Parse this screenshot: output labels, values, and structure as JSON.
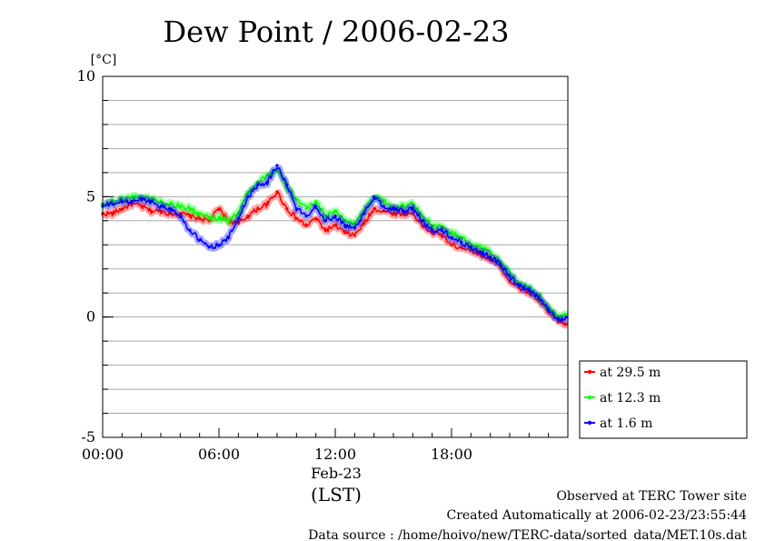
{
  "chart_data": {
    "type": "line",
    "title": "Dew Point / 2006-02-23",
    "ylabel": "[°C]",
    "ylim": [
      -5,
      10
    ],
    "yticks": [
      {
        "v": 10,
        "label": "10"
      },
      {
        "v": 5,
        "label": "5"
      },
      {
        "v": 0,
        "label": "0"
      },
      {
        "v": -5,
        "label": "-5"
      }
    ],
    "xlim": [
      0,
      24
    ],
    "xticks": [
      {
        "h": 0,
        "label": "00:00"
      },
      {
        "h": 6,
        "label": "06:00"
      },
      {
        "h": 12,
        "label": "12:00"
      },
      {
        "h": 18,
        "label": "18:00"
      }
    ],
    "xdate": "Feb-23",
    "xlabel": "(LST)",
    "grid": true,
    "legend_position": "right",
    "series": [
      {
        "name": "at 29.5 m",
        "color": "#ff0000",
        "x": [
          0,
          0.5,
          1,
          1.5,
          2,
          2.5,
          3,
          3.5,
          4,
          4.5,
          5,
          5.5,
          6,
          6.5,
          7,
          7.5,
          8,
          8.5,
          9,
          9.5,
          10,
          10.5,
          11,
          11.5,
          12,
          12.5,
          13,
          13.5,
          14,
          14.5,
          15,
          15.5,
          16,
          16.5,
          17,
          17.5,
          18,
          18.5,
          19,
          19.5,
          20,
          20.5,
          21,
          21.5,
          22,
          22.5,
          23,
          23.5,
          23.9
        ],
        "y": [
          4.3,
          4.3,
          4.5,
          4.7,
          4.6,
          4.4,
          4.4,
          4.3,
          4.3,
          4.2,
          4.1,
          4.0,
          4.5,
          4.0,
          3.9,
          4.2,
          4.5,
          4.7,
          5.2,
          4.5,
          4.1,
          3.8,
          4.1,
          3.6,
          3.8,
          3.5,
          3.4,
          3.9,
          4.5,
          4.4,
          4.3,
          4.3,
          4.3,
          3.8,
          3.5,
          3.4,
          3.0,
          2.9,
          2.8,
          2.6,
          2.4,
          2.1,
          1.5,
          1.2,
          1.0,
          0.7,
          0.2,
          -0.2,
          -0.3
        ]
      },
      {
        "name": "at 12.3 m",
        "color": "#00ff00",
        "x": [
          0,
          0.5,
          1,
          1.5,
          2,
          2.5,
          3,
          3.5,
          4,
          4.5,
          5,
          5.5,
          6,
          6.5,
          7,
          7.5,
          8,
          8.5,
          9,
          9.5,
          10,
          10.5,
          11,
          11.5,
          12,
          12.5,
          13,
          13.5,
          14,
          14.5,
          15,
          15.5,
          16,
          16.5,
          17,
          17.5,
          18,
          18.5,
          19,
          19.5,
          20,
          20.5,
          21,
          21.5,
          22,
          22.5,
          23,
          23.5,
          23.9
        ],
        "y": [
          4.7,
          4.8,
          4.9,
          5.0,
          5.0,
          4.9,
          4.8,
          4.7,
          4.6,
          4.5,
          4.3,
          4.1,
          4.1,
          4.0,
          4.3,
          5.2,
          5.6,
          5.9,
          6.1,
          5.4,
          4.9,
          4.5,
          4.8,
          4.2,
          4.4,
          4.0,
          3.9,
          4.4,
          5.0,
          4.8,
          4.6,
          4.6,
          4.7,
          4.2,
          3.8,
          3.7,
          3.5,
          3.3,
          3.0,
          2.9,
          2.7,
          2.3,
          1.8,
          1.4,
          1.2,
          0.9,
          0.4,
          0.0,
          0.1
        ]
      },
      {
        "name": "at 1.6 m",
        "color": "#0000ff",
        "x": [
          0,
          0.5,
          1,
          1.5,
          2,
          2.5,
          3,
          3.5,
          4,
          4.5,
          5,
          5.5,
          6,
          6.5,
          7,
          7.5,
          8,
          8.5,
          9,
          9.5,
          10,
          10.5,
          11,
          11.5,
          12,
          12.5,
          13,
          13.5,
          14,
          14.5,
          15,
          15.5,
          16,
          16.5,
          17,
          17.5,
          18,
          18.5,
          19,
          19.5,
          20,
          20.5,
          21,
          21.5,
          22,
          22.5,
          23,
          23.5,
          23.9
        ],
        "y": [
          4.6,
          4.7,
          4.8,
          4.8,
          4.9,
          4.8,
          4.6,
          4.5,
          4.2,
          3.6,
          3.2,
          2.9,
          3.0,
          3.3,
          4.1,
          5.0,
          5.5,
          5.6,
          6.3,
          5.5,
          4.5,
          4.2,
          4.6,
          4.0,
          4.2,
          3.8,
          3.7,
          4.3,
          5.0,
          4.6,
          4.5,
          4.4,
          4.5,
          4.0,
          3.6,
          3.6,
          3.3,
          3.1,
          2.9,
          2.7,
          2.5,
          2.2,
          1.7,
          1.3,
          1.1,
          0.8,
          0.3,
          -0.1,
          0.0
        ]
      }
    ]
  },
  "footer": {
    "site": "Observed at TERC Tower site",
    "created": "Created Automatically at 2006-02-23/23:55:44",
    "source": "Data source : /home/hoivo/new/TERC-data/sorted_data/MET.10s.dat"
  }
}
